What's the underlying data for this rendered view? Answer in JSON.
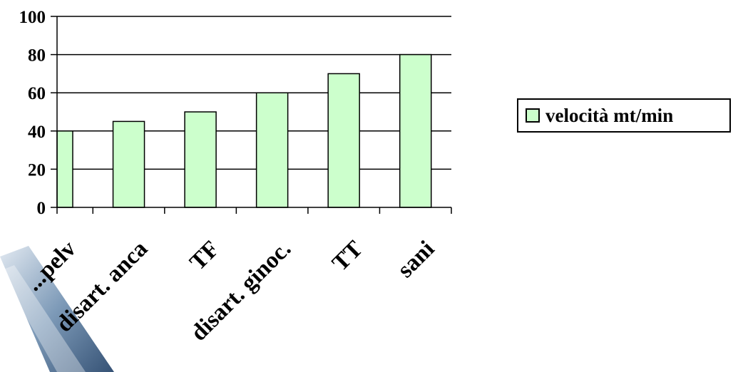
{
  "chart_data": {
    "type": "bar",
    "categories": [
      "amputaz. emipelv",
      "disart. anca",
      "TF",
      "disart. ginoc.",
      "TT",
      "sani"
    ],
    "visible_category_labels": [
      "...pelv",
      "disart. anca",
      "TF",
      "disart. ginoc.",
      "TT",
      "sani"
    ],
    "series": [
      {
        "name": "velocità mt/min",
        "values": [
          40,
          45,
          50,
          60,
          70,
          80
        ]
      }
    ],
    "yticks": [
      "0",
      "20",
      "40",
      "60",
      "80",
      "100"
    ],
    "ylim": [
      0,
      100
    ],
    "grid": true,
    "legend": "right",
    "bar_color": "#ccffcc",
    "edge_color": "#000000"
  }
}
